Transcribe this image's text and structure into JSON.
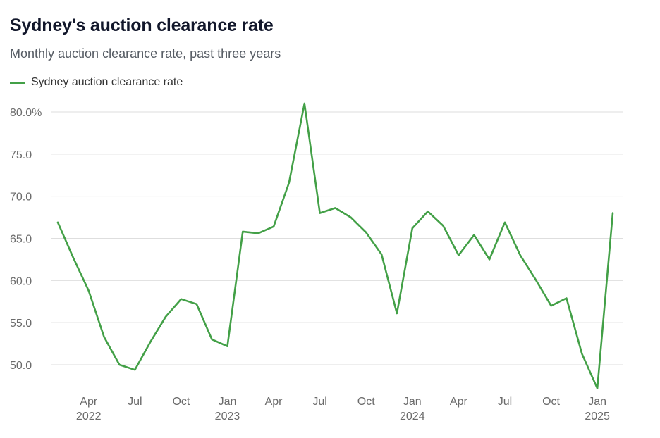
{
  "title": "Sydney's auction clearance rate",
  "subtitle": "Monthly auction clearance rate, past three years",
  "chart_data": {
    "type": "line",
    "title": "Sydney's auction clearance rate",
    "subtitle": "Monthly auction clearance rate, past three years",
    "xlabel": "",
    "ylabel": "",
    "ylim": [
      47,
      80
    ],
    "y_ticks": [
      "80.0%",
      "75.0",
      "70.0",
      "65.0",
      "60.0",
      "55.0",
      "50.0"
    ],
    "y_tick_values": [
      80,
      75,
      70,
      65,
      60,
      55,
      50
    ],
    "x_ticks": [
      {
        "month": "Apr",
        "year": "2022",
        "date": "2022-04"
      },
      {
        "month": "Jul",
        "year": "",
        "date": "2022-07"
      },
      {
        "month": "Oct",
        "year": "",
        "date": "2022-10"
      },
      {
        "month": "Jan",
        "year": "2023",
        "date": "2023-01"
      },
      {
        "month": "Apr",
        "year": "",
        "date": "2023-04"
      },
      {
        "month": "Jul",
        "year": "",
        "date": "2023-07"
      },
      {
        "month": "Oct",
        "year": "",
        "date": "2023-10"
      },
      {
        "month": "Jan",
        "year": "2024",
        "date": "2024-01"
      },
      {
        "month": "Apr",
        "year": "",
        "date": "2024-04"
      },
      {
        "month": "Jul",
        "year": "",
        "date": "2024-07"
      },
      {
        "month": "Oct",
        "year": "",
        "date": "2024-10"
      },
      {
        "month": "Jan",
        "year": "2025",
        "date": "2025-01"
      }
    ],
    "grid": true,
    "legend_position": "top-left",
    "series": [
      {
        "name": "Sydney auction clearance rate",
        "color": "#43a047",
        "x": [
          "2022-02",
          "2022-03",
          "2022-04",
          "2022-05",
          "2022-06",
          "2022-07",
          "2022-08",
          "2022-09",
          "2022-10",
          "2022-11",
          "2022-12",
          "2023-01",
          "2023-02",
          "2023-03",
          "2023-04",
          "2023-05",
          "2023-06",
          "2023-07",
          "2023-08",
          "2023-09",
          "2023-10",
          "2023-11",
          "2023-12",
          "2024-01",
          "2024-02",
          "2024-03",
          "2024-04",
          "2024-05",
          "2024-06",
          "2024-07",
          "2024-08",
          "2024-09",
          "2024-10",
          "2024-11",
          "2024-12",
          "2025-01",
          "2025-02"
        ],
        "values": [
          66.9,
          62.7,
          58.8,
          53.3,
          50.0,
          49.4,
          52.7,
          55.7,
          57.8,
          57.2,
          53.0,
          52.2,
          65.8,
          65.6,
          66.4,
          71.6,
          81.0,
          68.0,
          68.6,
          67.5,
          65.7,
          63.1,
          56.1,
          66.2,
          68.2,
          66.5,
          63.0,
          65.4,
          62.5,
          66.9,
          63.0,
          60.1,
          57.0,
          57.9,
          51.3,
          47.2,
          68.0
        ]
      }
    ]
  }
}
